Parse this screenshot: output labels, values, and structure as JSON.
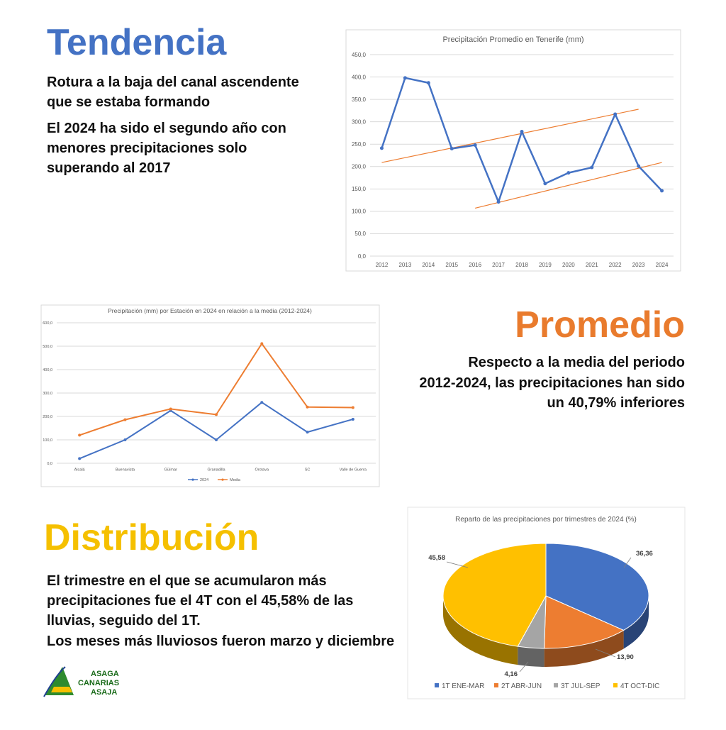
{
  "sections": [
    {
      "heading": "Tendencia",
      "lines": [
        "Rotura a la baja del canal ascendente",
        "que se estaba formando",
        "El 2024 ha sido el segundo año con",
        "menores precipitaciones solo",
        "superando al 2017"
      ]
    },
    {
      "heading": "Promedio",
      "lines": [
        "Respecto a la media del periodo",
        "2012-2024, las precipitaciones han sido",
        "un 40,79% inferiores"
      ]
    },
    {
      "heading": "Distribución",
      "lines": [
        "El trimestre en el que se acumularon más",
        "precipitaciones fue el 4T con el 45,58% de las",
        "lluvias, seguido del 1T.",
        "Los meses más lluviosos fueron marzo y diciembre"
      ]
    }
  ],
  "logo": [
    "ASAGA",
    "CANARIAS",
    "ASAJA"
  ],
  "chart_data": [
    {
      "type": "line",
      "title": "Precipitación Promedio en Tenerife (mm)",
      "categories": [
        "2012",
        "2013",
        "2014",
        "2015",
        "2016",
        "2017",
        "2018",
        "2019",
        "2020",
        "2021",
        "2022",
        "2023",
        "2024"
      ],
      "values": [
        241,
        398,
        387,
        240,
        248,
        121,
        278,
        162,
        186,
        198,
        317,
        201,
        146
      ],
      "color": "#4472c4",
      "ylim": [
        0,
        450
      ],
      "yticks": [
        {
          "value": 0,
          "label": "0,0"
        },
        {
          "value": 50,
          "label": "50,0"
        },
        {
          "value": 100,
          "label": "100,0"
        },
        {
          "value": 150,
          "label": "150,0"
        },
        {
          "value": 200,
          "label": "200,0"
        },
        {
          "value": 250,
          "label": "250,0"
        },
        {
          "value": 300,
          "label": "300,0"
        },
        {
          "value": 350,
          "label": "350,0"
        },
        {
          "value": 400,
          "label": "400,0"
        },
        {
          "value": 450,
          "label": "450,0"
        }
      ],
      "grid": true,
      "trend_lines": [
        {
          "color": "#ed7d31",
          "x": [
            "2012",
            "2023"
          ],
          "values": [
            209,
            328
          ]
        },
        {
          "color": "#ed7d31",
          "x": [
            "2016",
            "2024"
          ],
          "values": [
            107,
            209
          ]
        }
      ]
    },
    {
      "type": "line",
      "title": "Precipitación (mm) por Estación en 2024 en relación a la media (2012-2024)",
      "categories": [
        "Alcalá",
        "Buenavista",
        "Güímar",
        "Granadilla",
        "Orotava",
        "SC",
        "Valle de Guerra"
      ],
      "series": [
        {
          "name": "2024",
          "color": "#4472c4",
          "values": [
            20,
            100,
            225,
            100,
            260,
            133,
            188
          ]
        },
        {
          "name": "Media",
          "color": "#ed7d31",
          "values": [
            120,
            186,
            232,
            208,
            511,
            240,
            238
          ]
        }
      ],
      "ylim": [
        0,
        600
      ],
      "yticks": [
        {
          "value": 0,
          "label": "0,0"
        },
        {
          "value": 100,
          "label": "100,0"
        },
        {
          "value": 200,
          "label": "200,0"
        },
        {
          "value": 300,
          "label": "300,0"
        },
        {
          "value": 400,
          "label": "400,0"
        },
        {
          "value": 500,
          "label": "500,0"
        },
        {
          "value": 600,
          "label": "600,0"
        }
      ],
      "grid": true,
      "legend": "bottom"
    },
    {
      "type": "pie",
      "title": "Reparto de las precipitaciones por trimestres de 2024 (%)",
      "categories": [
        "1T ENE-MAR",
        "2T ABR-JUN",
        "3T JUL-SEP",
        "4T OCT-DIC"
      ],
      "values": [
        36.36,
        13.9,
        4.16,
        45.58
      ],
      "value_labels": [
        "36,36",
        "13,90",
        "4,16",
        "45,58"
      ],
      "colors": [
        "#4472c4",
        "#ed7d31",
        "#a5a5a5",
        "#ffc000"
      ],
      "legend": "bottom"
    }
  ]
}
